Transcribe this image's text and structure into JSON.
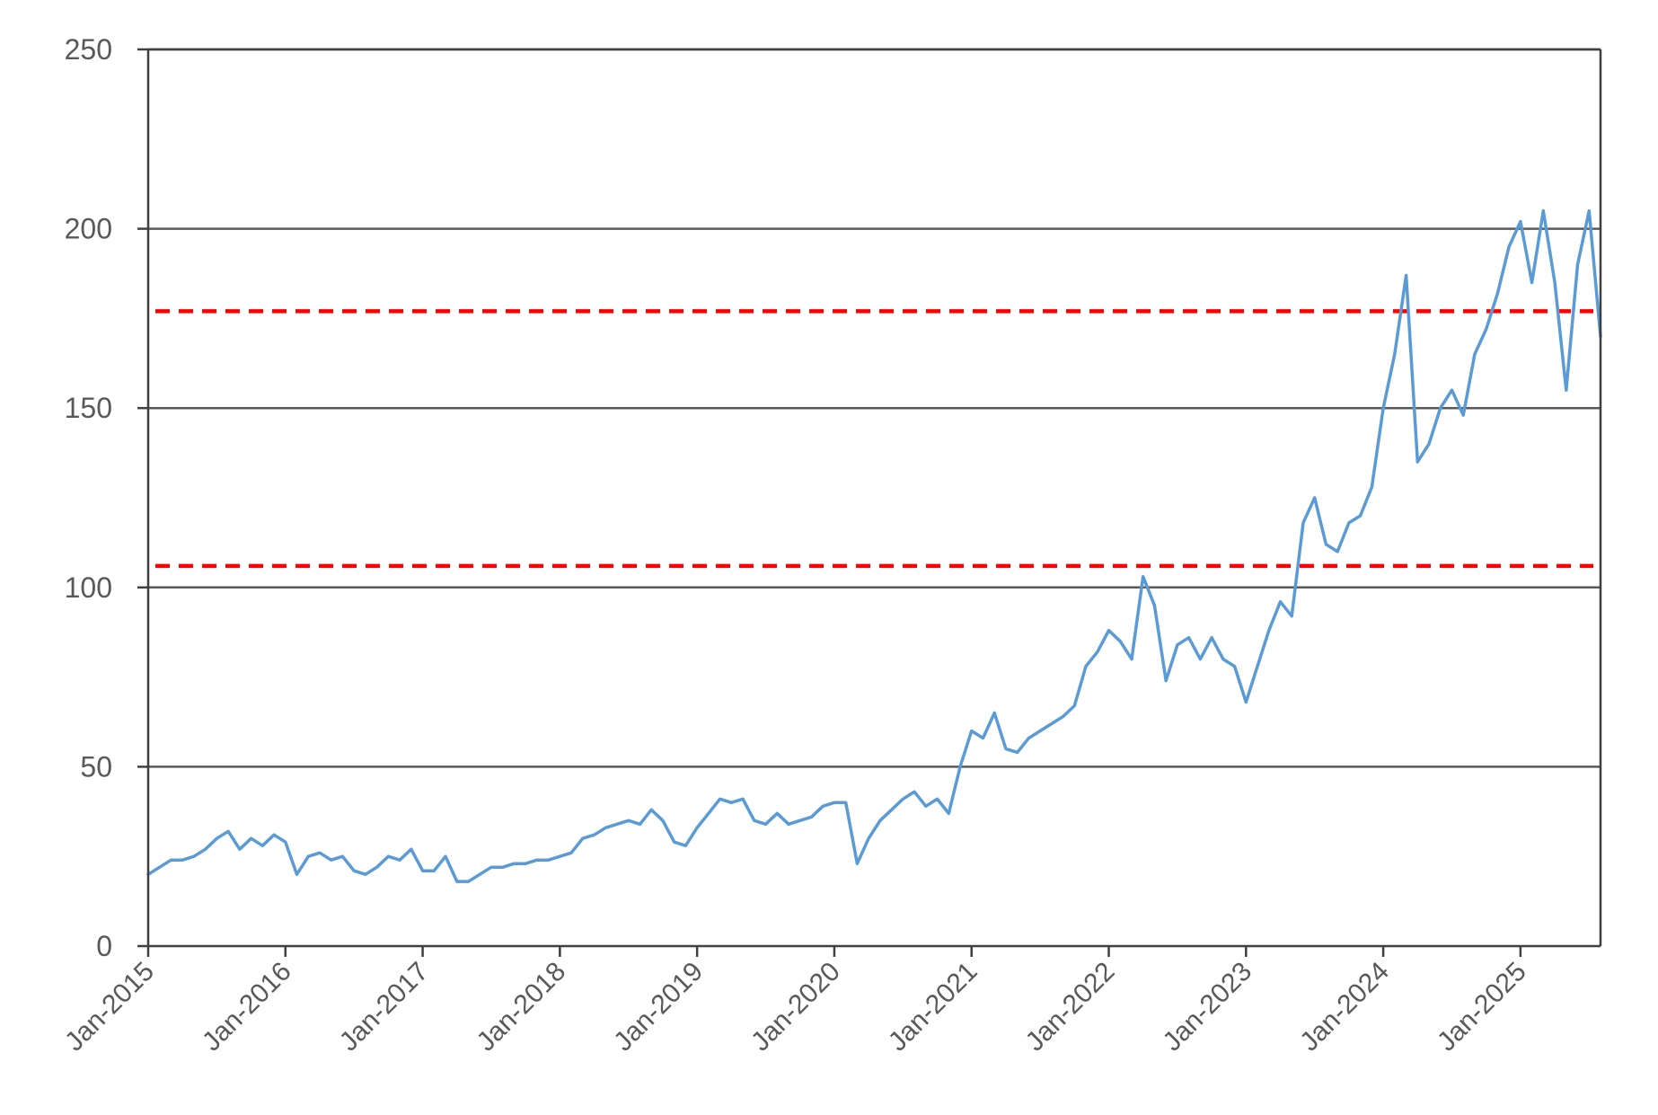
{
  "chart_data": {
    "type": "line",
    "title": "",
    "xlabel": "",
    "ylabel": "",
    "xlim": [
      "2015-01",
      "2025-08"
    ],
    "ylim": [
      0,
      250
    ],
    "y_ticks": [
      {
        "value": 0,
        "label": "0"
      },
      {
        "value": 50,
        "label": "50"
      },
      {
        "value": 100,
        "label": "100"
      },
      {
        "value": 150,
        "label": "150"
      },
      {
        "value": 200,
        "label": "200"
      },
      {
        "value": 250,
        "label": "250"
      }
    ],
    "x_ticks": [
      {
        "value": "2015-01",
        "label": "Jan-2015"
      },
      {
        "value": "2016-01",
        "label": "Jan-2016"
      },
      {
        "value": "2017-01",
        "label": "Jan-2017"
      },
      {
        "value": "2018-01",
        "label": "Jan-2018"
      },
      {
        "value": "2019-01",
        "label": "Jan-2019"
      },
      {
        "value": "2020-01",
        "label": "Jan-2020"
      },
      {
        "value": "2021-01",
        "label": "Jan-2021"
      },
      {
        "value": "2022-01",
        "label": "Jan-2022"
      },
      {
        "value": "2023-01",
        "label": "Jan-2023"
      },
      {
        "value": "2024-01",
        "label": "Jan-2024"
      },
      {
        "value": "2025-01",
        "label": "Jan-2025"
      }
    ],
    "grid": true,
    "legend": "none",
    "series": [
      {
        "color": "#5b9bd5",
        "points": [
          [
            "2015-01",
            20
          ],
          [
            "2015-02",
            22
          ],
          [
            "2015-03",
            24
          ],
          [
            "2015-04",
            24
          ],
          [
            "2015-05",
            25
          ],
          [
            "2015-06",
            27
          ],
          [
            "2015-07",
            30
          ],
          [
            "2015-08",
            32
          ],
          [
            "2015-09",
            27
          ],
          [
            "2015-10",
            30
          ],
          [
            "2015-11",
            28
          ],
          [
            "2015-12",
            31
          ],
          [
            "2016-01",
            29
          ],
          [
            "2016-02",
            20
          ],
          [
            "2016-03",
            25
          ],
          [
            "2016-04",
            26
          ],
          [
            "2016-05",
            24
          ],
          [
            "2016-06",
            25
          ],
          [
            "2016-07",
            21
          ],
          [
            "2016-08",
            20
          ],
          [
            "2016-09",
            22
          ],
          [
            "2016-10",
            25
          ],
          [
            "2016-11",
            24
          ],
          [
            "2016-12",
            27
          ],
          [
            "2017-01",
            21
          ],
          [
            "2017-02",
            21
          ],
          [
            "2017-03",
            25
          ],
          [
            "2017-04",
            18
          ],
          [
            "2017-05",
            18
          ],
          [
            "2017-06",
            20
          ],
          [
            "2017-07",
            22
          ],
          [
            "2017-08",
            22
          ],
          [
            "2017-09",
            23
          ],
          [
            "2017-10",
            23
          ],
          [
            "2017-11",
            24
          ],
          [
            "2017-12",
            24
          ],
          [
            "2018-01",
            25
          ],
          [
            "2018-02",
            26
          ],
          [
            "2018-03",
            30
          ],
          [
            "2018-04",
            31
          ],
          [
            "2018-05",
            33
          ],
          [
            "2018-06",
            34
          ],
          [
            "2018-07",
            35
          ],
          [
            "2018-08",
            34
          ],
          [
            "2018-09",
            38
          ],
          [
            "2018-10",
            35
          ],
          [
            "2018-11",
            29
          ],
          [
            "2018-12",
            28
          ],
          [
            "2019-01",
            33
          ],
          [
            "2019-02",
            37
          ],
          [
            "2019-03",
            41
          ],
          [
            "2019-04",
            40
          ],
          [
            "2019-05",
            41
          ],
          [
            "2019-06",
            35
          ],
          [
            "2019-07",
            34
          ],
          [
            "2019-08",
            37
          ],
          [
            "2019-09",
            34
          ],
          [
            "2019-10",
            35
          ],
          [
            "2019-11",
            36
          ],
          [
            "2019-12",
            39
          ],
          [
            "2020-01",
            40
          ],
          [
            "2020-02",
            40
          ],
          [
            "2020-03",
            23
          ],
          [
            "2020-04",
            30
          ],
          [
            "2020-05",
            35
          ],
          [
            "2020-06",
            38
          ],
          [
            "2020-07",
            41
          ],
          [
            "2020-08",
            43
          ],
          [
            "2020-09",
            39
          ],
          [
            "2020-10",
            41
          ],
          [
            "2020-11",
            37
          ],
          [
            "2020-12",
            50
          ],
          [
            "2021-01",
            60
          ],
          [
            "2021-02",
            58
          ],
          [
            "2021-03",
            65
          ],
          [
            "2021-04",
            55
          ],
          [
            "2021-05",
            54
          ],
          [
            "2021-06",
            58
          ],
          [
            "2021-07",
            60
          ],
          [
            "2021-08",
            62
          ],
          [
            "2021-09",
            64
          ],
          [
            "2021-10",
            67
          ],
          [
            "2021-11",
            78
          ],
          [
            "2021-12",
            82
          ],
          [
            "2022-01",
            88
          ],
          [
            "2022-02",
            85
          ],
          [
            "2022-03",
            80
          ],
          [
            "2022-04",
            103
          ],
          [
            "2022-05",
            95
          ],
          [
            "2022-06",
            74
          ],
          [
            "2022-07",
            84
          ],
          [
            "2022-08",
            86
          ],
          [
            "2022-09",
            80
          ],
          [
            "2022-10",
            86
          ],
          [
            "2022-11",
            80
          ],
          [
            "2022-12",
            78
          ],
          [
            "2023-01",
            68
          ],
          [
            "2023-02",
            78
          ],
          [
            "2023-03",
            88
          ],
          [
            "2023-04",
            96
          ],
          [
            "2023-05",
            92
          ],
          [
            "2023-06",
            118
          ],
          [
            "2023-07",
            125
          ],
          [
            "2023-08",
            112
          ],
          [
            "2023-09",
            110
          ],
          [
            "2023-10",
            118
          ],
          [
            "2023-11",
            120
          ],
          [
            "2023-12",
            128
          ],
          [
            "2024-01",
            150
          ],
          [
            "2024-02",
            165
          ],
          [
            "2024-03",
            187
          ],
          [
            "2024-04",
            135
          ],
          [
            "2024-05",
            140
          ],
          [
            "2024-06",
            150
          ],
          [
            "2024-07",
            155
          ],
          [
            "2024-08",
            148
          ],
          [
            "2024-09",
            165
          ],
          [
            "2024-10",
            172
          ],
          [
            "2024-11",
            182
          ],
          [
            "2024-12",
            195
          ],
          [
            "2025-01",
            202
          ],
          [
            "2025-02",
            185
          ],
          [
            "2025-03",
            205
          ],
          [
            "2025-04",
            185
          ],
          [
            "2025-05",
            155
          ],
          [
            "2025-06",
            190
          ],
          [
            "2025-07",
            205
          ],
          [
            "2025-08",
            170
          ]
        ]
      }
    ],
    "reference_lines": [
      {
        "y": 177,
        "color": "#ff0000",
        "style": "dashed"
      },
      {
        "y": 106,
        "color": "#ff0000",
        "style": "dashed"
      }
    ]
  }
}
